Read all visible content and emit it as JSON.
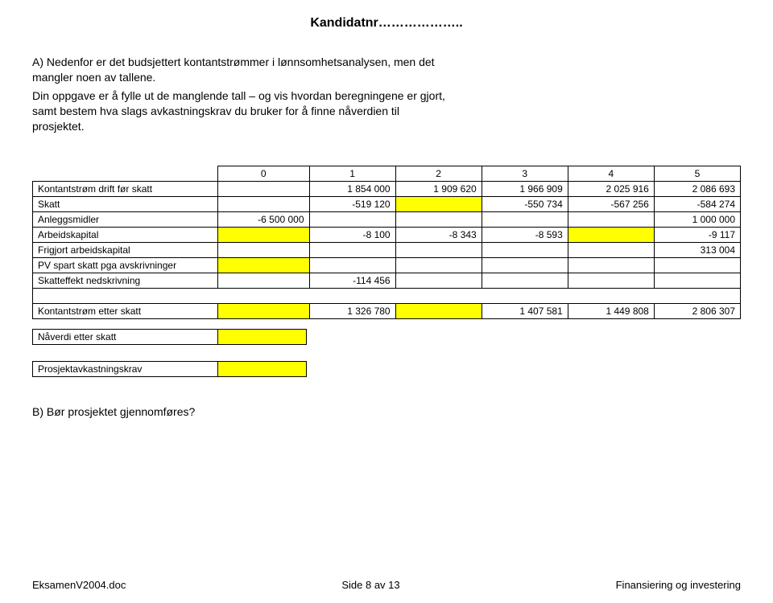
{
  "header": "Kandidatnr………………..",
  "intro": {
    "p1": "A) Nedenfor er det budsjettert kontantstrømmer i lønnsomhetsanalysen, men det mangler noen av tallene.",
    "p2": "Din oppgave er å fylle ut de manglende tall – og vis hvordan beregningene er gjort, samt bestem hva slags avkastningskrav du bruker for å finne nåverdien til prosjektet."
  },
  "table": {
    "year_labels": [
      "0",
      "1",
      "2",
      "3",
      "4",
      "5"
    ],
    "rows": {
      "drift": {
        "label": "Kontantstrøm drift før skatt",
        "cells": [
          {
            "val": "",
            "yellow": false
          },
          {
            "val": "1 854 000",
            "yellow": false
          },
          {
            "val": "1 909 620",
            "yellow": false
          },
          {
            "val": "1 966 909",
            "yellow": false
          },
          {
            "val": "2 025 916",
            "yellow": false
          },
          {
            "val": "2 086 693",
            "yellow": false
          }
        ]
      },
      "skatt": {
        "label": "Skatt",
        "cells": [
          {
            "val": "",
            "yellow": false
          },
          {
            "val": "-519 120",
            "yellow": false
          },
          {
            "val": "",
            "yellow": true
          },
          {
            "val": "-550 734",
            "yellow": false
          },
          {
            "val": "-567 256",
            "yellow": false
          },
          {
            "val": "-584 274",
            "yellow": false
          }
        ]
      },
      "anlegg": {
        "label": "Anleggsmidler",
        "cells": [
          {
            "val": "-6 500 000",
            "yellow": false
          },
          {
            "val": "",
            "yellow": false
          },
          {
            "val": "",
            "yellow": false
          },
          {
            "val": "",
            "yellow": false
          },
          {
            "val": "",
            "yellow": false
          },
          {
            "val": "1 000 000",
            "yellow": false
          }
        ]
      },
      "arbeidskapital": {
        "label": "Arbeidskapital",
        "cells": [
          {
            "val": "",
            "yellow": true
          },
          {
            "val": "-8 100",
            "yellow": false
          },
          {
            "val": "-8 343",
            "yellow": false
          },
          {
            "val": "-8 593",
            "yellow": false
          },
          {
            "val": "",
            "yellow": true
          },
          {
            "val": "-9 117",
            "yellow": false
          }
        ]
      },
      "frigjort": {
        "label": "Frigjort arbeidskapital",
        "cells": [
          {
            "val": "",
            "yellow": false
          },
          {
            "val": "",
            "yellow": false
          },
          {
            "val": "",
            "yellow": false
          },
          {
            "val": "",
            "yellow": false
          },
          {
            "val": "",
            "yellow": false
          },
          {
            "val": "313 004",
            "yellow": false
          }
        ]
      },
      "pv_spart": {
        "label": "PV spart skatt pga avskrivninger",
        "cells": [
          {
            "val": "",
            "yellow": true
          },
          {
            "val": "",
            "yellow": false
          },
          {
            "val": "",
            "yellow": false
          },
          {
            "val": "",
            "yellow": false
          },
          {
            "val": "",
            "yellow": false
          },
          {
            "val": "",
            "yellow": false
          }
        ]
      },
      "skatteffekt": {
        "label": "Skatteffekt nedskrivning",
        "cells": [
          {
            "val": "",
            "yellow": false
          },
          {
            "val": "-114 456",
            "yellow": false
          },
          {
            "val": "",
            "yellow": false
          },
          {
            "val": "",
            "yellow": false
          },
          {
            "val": "",
            "yellow": false
          },
          {
            "val": "",
            "yellow": false
          }
        ]
      },
      "etter_skatt": {
        "label": "Kontantstrøm etter skatt",
        "cells": [
          {
            "val": "",
            "yellow": true
          },
          {
            "val": "1 326 780",
            "yellow": false
          },
          {
            "val": "",
            "yellow": true
          },
          {
            "val": "1 407 581",
            "yellow": false
          },
          {
            "val": "1 449 808",
            "yellow": false
          },
          {
            "val": "2 806 307",
            "yellow": false
          }
        ]
      }
    }
  },
  "small": {
    "naverdi_label": "Nåverdi etter skatt",
    "krav_label": "Prosjektavkastningskrav"
  },
  "question_b": "B) Bør prosjektet gjennomføres?",
  "footer": {
    "left": "EksamenV2004.doc",
    "center": "Side 8 av 13",
    "right": "Finansiering og investering"
  },
  "colors": {
    "highlight": "#ffff00",
    "text": "#000000",
    "bg": "#ffffff",
    "border": "#000000"
  }
}
